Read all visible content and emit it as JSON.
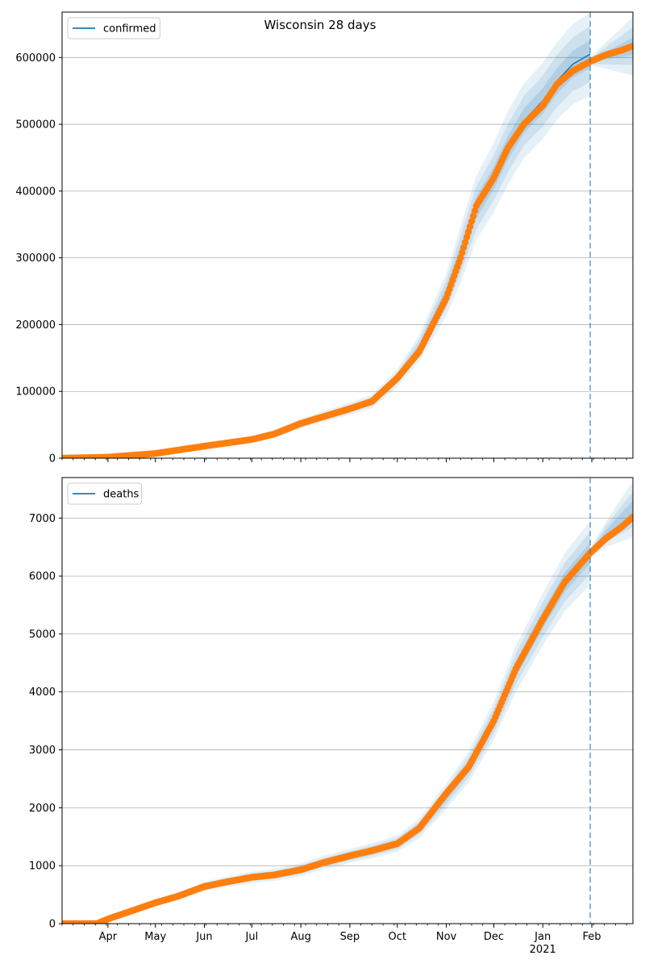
{
  "figure": {
    "title": "Wisconsin 28 days"
  },
  "colors": {
    "model_line": "#1f77b4",
    "band": "#1f77b4",
    "observed": "#ff7f0e",
    "grid": "#b0b0b0",
    "forecast_marker": "#1f77b4"
  },
  "chart_data": [
    {
      "type": "line",
      "title": "Wisconsin 28 days",
      "xlabel": "",
      "ylabel": "",
      "x_axis": {
        "type": "date",
        "range": [
          "2020-03-03",
          "2021-02-27"
        ],
        "tick_labels": [
          {
            "date": "2020-04-01",
            "label": "Apr"
          },
          {
            "date": "2020-05-01",
            "label": "May"
          },
          {
            "date": "2020-06-01",
            "label": "Jun"
          },
          {
            "date": "2020-07-01",
            "label": "Jul"
          },
          {
            "date": "2020-08-01",
            "label": "Aug"
          },
          {
            "date": "2020-09-01",
            "label": "Sep"
          },
          {
            "date": "2020-10-01",
            "label": "Oct"
          },
          {
            "date": "2020-11-01",
            "label": "Nov"
          },
          {
            "date": "2020-12-01",
            "label": "Dec"
          },
          {
            "date": "2021-01-01",
            "label": "Jan",
            "sublabel": "2021"
          },
          {
            "date": "2021-02-01",
            "label": "Feb"
          }
        ],
        "tick_labels_visible": false
      },
      "ylim": [
        0,
        668000
      ],
      "y_ticks": [
        0,
        100000,
        200000,
        300000,
        400000,
        500000,
        600000
      ],
      "grid": "horizontal",
      "legend": {
        "placement": "top-left",
        "entries": [
          "confirmed"
        ]
      },
      "forecast_start": "2021-01-31",
      "series": [
        {
          "name": "confirmed",
          "kind": "model line with uncertainty bands",
          "points": [
            [
              "2020-03-03",
              0
            ],
            [
              "2020-04-01",
              1500
            ],
            [
              "2020-05-01",
              7000
            ],
            [
              "2020-06-01",
              18000
            ],
            [
              "2020-07-01",
              28000
            ],
            [
              "2020-07-15",
              36000
            ],
            [
              "2020-08-01",
              52000
            ],
            [
              "2020-08-15",
              62000
            ],
            [
              "2020-09-01",
              74000
            ],
            [
              "2020-09-15",
              85000
            ],
            [
              "2020-10-01",
              120000
            ],
            [
              "2020-10-15",
              165000
            ],
            [
              "2020-11-01",
              245000
            ],
            [
              "2020-11-10",
              305000
            ],
            [
              "2020-11-20",
              375000
            ],
            [
              "2020-12-01",
              420000
            ],
            [
              "2020-12-10",
              465000
            ],
            [
              "2020-12-20",
              505000
            ],
            [
              "2021-01-01",
              535000
            ],
            [
              "2021-01-10",
              565000
            ],
            [
              "2021-01-20",
              590000
            ],
            [
              "2021-01-31",
              605000
            ]
          ],
          "bands": [
            {
              "level": "outer",
              "half_width": [
                0,
                500,
                2000,
                4000,
                5000,
                6000,
                7000,
                8000,
                9000,
                10000,
                13000,
                20000,
                32000,
                42000,
                48000,
                52000,
                55000,
                56000,
                57000,
                58000,
                60000,
                62000
              ]
            },
            {
              "level": "middle",
              "half_width": [
                0,
                300,
                1200,
                2500,
                3200,
                4000,
                4500,
                5200,
                5800,
                6400,
                8000,
                13000,
                21000,
                28000,
                32000,
                34000,
                36000,
                37000,
                38000,
                39000,
                40000,
                42000
              ]
            },
            {
              "level": "inner",
              "half_width": [
                0,
                150,
                600,
                1200,
                1600,
                2000,
                2300,
                2600,
                2900,
                3200,
                4000,
                6500,
                10500,
                14000,
                16000,
                17000,
                18000,
                18500,
                19000,
                19500,
                20000,
                21000
              ]
            }
          ]
        },
        {
          "name": "observed",
          "kind": "markers",
          "points": [
            [
              "2020-03-03",
              0
            ],
            [
              "2020-04-01",
              1500
            ],
            [
              "2020-05-01",
              7000
            ],
            [
              "2020-06-01",
              18000
            ],
            [
              "2020-07-01",
              28000
            ],
            [
              "2020-07-15",
              36000
            ],
            [
              "2020-08-01",
              52000
            ],
            [
              "2020-08-15",
              62000
            ],
            [
              "2020-09-01",
              74000
            ],
            [
              "2020-09-15",
              85000
            ],
            [
              "2020-10-01",
              120000
            ],
            [
              "2020-10-15",
              160000
            ],
            [
              "2020-11-01",
              240000
            ],
            [
              "2020-11-10",
              300000
            ],
            [
              "2020-11-20",
              378000
            ],
            [
              "2020-12-01",
              420000
            ],
            [
              "2020-12-10",
              465000
            ],
            [
              "2020-12-20",
              500000
            ],
            [
              "2021-01-01",
              528000
            ],
            [
              "2021-01-10",
              560000
            ],
            [
              "2021-01-20",
              580000
            ],
            [
              "2021-01-31",
              594000
            ],
            [
              "2021-02-10",
              604000
            ],
            [
              "2021-02-20",
              611000
            ],
            [
              "2021-02-27",
              617000
            ]
          ]
        },
        {
          "name": "forecast",
          "kind": "uncertainty bands",
          "points": [
            [
              "2021-01-31",
              594000
            ],
            [
              "2021-02-10",
              603000
            ],
            [
              "2021-02-20",
              611000
            ],
            [
              "2021-02-27",
              617000
            ]
          ],
          "bands": [
            {
              "level": "outer",
              "half_width": [
                6000,
                20000,
                34000,
                44000
              ]
            },
            {
              "level": "middle",
              "half_width": [
                4000,
                13000,
                22000,
                28000
              ]
            },
            {
              "level": "inner",
              "half_width": [
                2000,
                6000,
                10000,
                13000
              ]
            }
          ]
        }
      ]
    },
    {
      "type": "line",
      "title": "",
      "xlabel": "",
      "ylabel": "",
      "x_axis": {
        "type": "date",
        "range": [
          "2020-03-03",
          "2021-02-27"
        ],
        "tick_labels": [
          {
            "date": "2020-04-01",
            "label": "Apr"
          },
          {
            "date": "2020-05-01",
            "label": "May"
          },
          {
            "date": "2020-06-01",
            "label": "Jun"
          },
          {
            "date": "2020-07-01",
            "label": "Jul"
          },
          {
            "date": "2020-08-01",
            "label": "Aug"
          },
          {
            "date": "2020-09-01",
            "label": "Sep"
          },
          {
            "date": "2020-10-01",
            "label": "Oct"
          },
          {
            "date": "2020-11-01",
            "label": "Nov"
          },
          {
            "date": "2020-12-01",
            "label": "Dec"
          },
          {
            "date": "2021-01-01",
            "label": "Jan",
            "sublabel": "2021"
          },
          {
            "date": "2021-02-01",
            "label": "Feb"
          }
        ],
        "tick_labels_visible": true
      },
      "ylim": [
        0,
        7700
      ],
      "y_ticks": [
        0,
        1000,
        2000,
        3000,
        4000,
        5000,
        6000,
        7000
      ],
      "grid": "horizontal",
      "legend": {
        "placement": "top-left",
        "entries": [
          "deaths"
        ]
      },
      "forecast_start": "2021-01-31",
      "series": [
        {
          "name": "deaths",
          "kind": "model line with uncertainty bands",
          "points": [
            [
              "2020-03-03",
              0
            ],
            [
              "2020-03-25",
              0
            ],
            [
              "2020-04-01",
              80
            ],
            [
              "2020-04-15",
              210
            ],
            [
              "2020-05-01",
              360
            ],
            [
              "2020-05-15",
              470
            ],
            [
              "2020-06-01",
              640
            ],
            [
              "2020-06-15",
              720
            ],
            [
              "2020-07-01",
              800
            ],
            [
              "2020-07-15",
              840
            ],
            [
              "2020-08-01",
              930
            ],
            [
              "2020-08-15",
              1050
            ],
            [
              "2020-09-01",
              1170
            ],
            [
              "2020-09-15",
              1260
            ],
            [
              "2020-10-01",
              1380
            ],
            [
              "2020-10-15",
              1650
            ],
            [
              "2020-11-01",
              2200
            ],
            [
              "2020-11-15",
              2700
            ],
            [
              "2020-12-01",
              3500
            ],
            [
              "2020-12-15",
              4400
            ],
            [
              "2021-01-01",
              5250
            ],
            [
              "2021-01-15",
              5900
            ],
            [
              "2021-01-31",
              6400
            ]
          ],
          "bands": [
            {
              "level": "outer",
              "half_width": [
                0,
                0,
                20,
                40,
                60,
                70,
                80,
                90,
                100,
                105,
                110,
                115,
                120,
                130,
                140,
                170,
                220,
                270,
                330,
                400,
                450,
                500,
                550
              ]
            },
            {
              "level": "middle",
              "half_width": [
                0,
                0,
                12,
                25,
                38,
                45,
                52,
                58,
                64,
                68,
                72,
                76,
                80,
                86,
                92,
                110,
                145,
                180,
                220,
                265,
                300,
                335,
                365
              ]
            },
            {
              "level": "inner",
              "half_width": [
                0,
                0,
                6,
                12,
                18,
                22,
                26,
                29,
                32,
                34,
                36,
                38,
                40,
                43,
                46,
                55,
                72,
                90,
                110,
                132,
                150,
                168,
                182
              ]
            }
          ]
        },
        {
          "name": "observed",
          "kind": "markers",
          "points": [
            [
              "2020-03-03",
              0
            ],
            [
              "2020-03-25",
              0
            ],
            [
              "2020-04-01",
              80
            ],
            [
              "2020-04-15",
              210
            ],
            [
              "2020-05-01",
              360
            ],
            [
              "2020-05-15",
              470
            ],
            [
              "2020-06-01",
              640
            ],
            [
              "2020-06-15",
              720
            ],
            [
              "2020-07-01",
              800
            ],
            [
              "2020-07-15",
              840
            ],
            [
              "2020-08-01",
              930
            ],
            [
              "2020-08-15",
              1050
            ],
            [
              "2020-09-01",
              1170
            ],
            [
              "2020-09-15",
              1260
            ],
            [
              "2020-10-01",
              1380
            ],
            [
              "2020-10-15",
              1650
            ],
            [
              "2020-11-01",
              2250
            ],
            [
              "2020-11-15",
              2700
            ],
            [
              "2020-12-01",
              3500
            ],
            [
              "2020-12-15",
              4400
            ],
            [
              "2021-01-01",
              5250
            ],
            [
              "2021-01-15",
              5900
            ],
            [
              "2021-01-31",
              6400
            ],
            [
              "2021-02-10",
              6650
            ],
            [
              "2021-02-20",
              6850
            ],
            [
              "2021-02-27",
              7020
            ]
          ]
        },
        {
          "name": "forecast",
          "kind": "uncertainty bands",
          "points": [
            [
              "2021-01-31",
              6400
            ],
            [
              "2021-02-10",
              6720
            ],
            [
              "2021-02-20",
              6980
            ],
            [
              "2021-02-27",
              7150
            ]
          ],
          "bands": [
            {
              "level": "outer",
              "half_width": [
                80,
                220,
                380,
                480
              ]
            },
            {
              "level": "middle",
              "half_width": [
                50,
                140,
                240,
                300
              ]
            },
            {
              "level": "inner",
              "half_width": [
                25,
                70,
                120,
                150
              ]
            }
          ]
        }
      ]
    }
  ]
}
